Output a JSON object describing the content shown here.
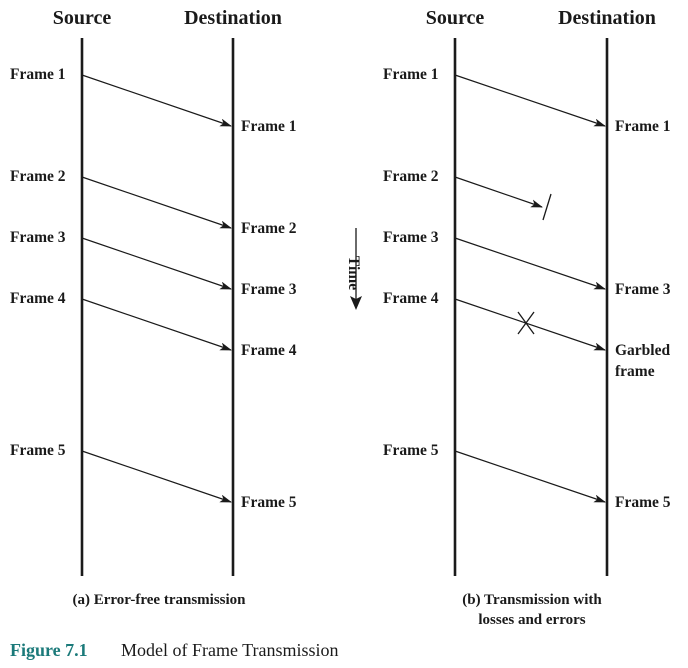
{
  "panel_a": {
    "source_header": "Source",
    "destination_header": "Destination",
    "sent": [
      "Frame 1",
      "Frame 2",
      "Frame 3",
      "Frame 4",
      "Frame 5"
    ],
    "received": [
      "Frame 1",
      "Frame 2",
      "Frame 3",
      "Frame 4",
      "Frame 5"
    ],
    "caption": "(a) Error-free transmission"
  },
  "panel_b": {
    "source_header": "Source",
    "destination_header": "Destination",
    "sent": [
      "Frame 1",
      "Frame 2",
      "Frame 3",
      "Frame 4",
      "Frame 5"
    ],
    "received_frame_1": "Frame 1",
    "received_frame_3": "Frame 3",
    "garbled_line_1": "Garbled",
    "garbled_line_2": "frame",
    "received_frame_5": "Frame 5",
    "caption_line_1": "(b) Transmission with",
    "caption_line_2": "losses and errors"
  },
  "time_label": "Time",
  "figure": {
    "number": "Figure 7.1",
    "title": "Model of Frame Transmission"
  }
}
